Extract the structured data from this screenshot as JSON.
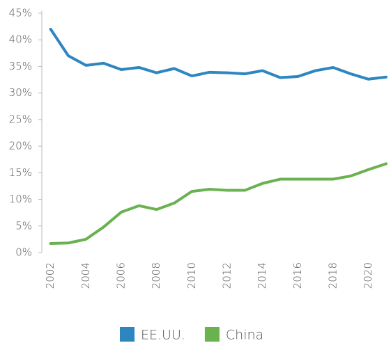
{
  "chart_data": {
    "type": "line",
    "x": [
      2002,
      2003,
      2004,
      2005,
      2006,
      2007,
      2008,
      2009,
      2010,
      2011,
      2012,
      2013,
      2014,
      2015,
      2016,
      2017,
      2018,
      2019,
      2020,
      2021
    ],
    "series": [
      {
        "name": "EE.UU.",
        "color": "#2e86c1",
        "values": [
          42.0,
          37.0,
          35.2,
          35.6,
          34.4,
          34.8,
          33.8,
          34.6,
          33.2,
          33.9,
          33.8,
          33.6,
          34.2,
          32.9,
          33.1,
          34.2,
          34.8,
          33.6,
          32.6,
          33.0
        ]
      },
      {
        "name": "China",
        "color": "#6ab150",
        "values": [
          1.7,
          1.8,
          2.5,
          4.8,
          7.6,
          8.8,
          8.1,
          9.3,
          11.5,
          11.9,
          11.7,
          11.7,
          13.0,
          13.8,
          13.8,
          13.8,
          13.8,
          14.4,
          15.6,
          16.7
        ]
      }
    ],
    "xlim": [
      2001.5,
      2021.2
    ],
    "xticks": [
      2002,
      2004,
      2006,
      2008,
      2010,
      2012,
      2014,
      2016,
      2018,
      2020
    ],
    "ylim": [
      0,
      45
    ],
    "yticks": [
      {
        "value": 0,
        "label": "0%"
      },
      {
        "value": 5,
        "label": "5%"
      },
      {
        "value": 10,
        "label": "10%"
      },
      {
        "value": 15,
        "label": "15%"
      },
      {
        "value": 20,
        "label": "20%"
      },
      {
        "value": 25,
        "label": "25%"
      },
      {
        "value": 30,
        "label": "30%"
      },
      {
        "value": 35,
        "label": "35%"
      },
      {
        "value": 40,
        "label": "40%"
      },
      {
        "value": 45,
        "label": "45%"
      }
    ],
    "grid": false,
    "legend": "bottom"
  }
}
